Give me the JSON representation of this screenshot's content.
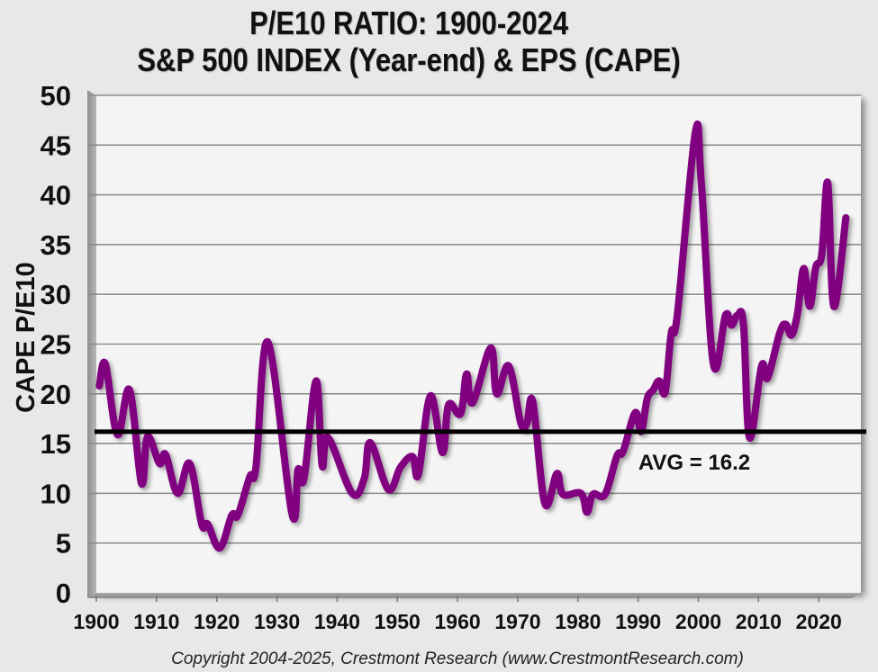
{
  "chart_data": {
    "type": "line",
    "title": "P/E10 RATIO: 1900-2024",
    "subtitle": "S&P 500 INDEX (Year-end) & EPS (CAPE)",
    "xlabel": "",
    "ylabel": "CAPE P/E10",
    "xlim": [
      1900,
      2027
    ],
    "ylim": [
      0,
      50
    ],
    "grid": true,
    "x_ticks": [
      1900,
      1910,
      1920,
      1930,
      1940,
      1950,
      1960,
      1970,
      1980,
      1990,
      2000,
      2010,
      2020
    ],
    "x_tick_labels": [
      "1900",
      "1910",
      "1920",
      "1930",
      "1940",
      "1950",
      "1960",
      "1970",
      "1980",
      "1990",
      "2000",
      "2010",
      "2020"
    ],
    "y_ticks": [
      0,
      5,
      10,
      15,
      20,
      25,
      30,
      35,
      40,
      45,
      50
    ],
    "y_tick_labels": [
      "0",
      "5",
      "10",
      "15",
      "20",
      "25",
      "30",
      "35",
      "40",
      "45",
      "50"
    ],
    "series": [
      {
        "name": "CAPE P/E10",
        "color": "#800080",
        "x": [
          1900,
          1901,
          1903,
          1905,
          1907,
          1908,
          1910,
          1911,
          1913,
          1915,
          1917,
          1918,
          1920,
          1922,
          1923,
          1925,
          1926,
          1928,
          1932,
          1933,
          1934,
          1936,
          1937,
          1938,
          1942,
          1944,
          1945,
          1948,
          1950,
          1952,
          1953,
          1955,
          1957,
          1958,
          1960,
          1961,
          1962,
          1965,
          1966,
          1968,
          1970,
          1971,
          1972,
          1974,
          1976,
          1977,
          1980,
          1981,
          1982,
          1984,
          1986,
          1987,
          1989,
          1990,
          1991,
          1992,
          1993,
          1994,
          1995,
          1996,
          1999,
          2000,
          2002,
          2004,
          2005,
          2006,
          2007,
          2008,
          2010,
          2011,
          2013,
          2014,
          2015,
          2016,
          2017,
          2018,
          2019,
          2020,
          2021,
          2022,
          2024
        ],
        "values": [
          20.8,
          23.0,
          15.9,
          20.4,
          11.0,
          15.7,
          13.0,
          13.9,
          10.0,
          13.0,
          6.9,
          6.9,
          4.5,
          7.8,
          7.8,
          11.7,
          12.6,
          25.2,
          7.9,
          12.4,
          11.5,
          21.3,
          12.8,
          15.6,
          10.0,
          11.5,
          15.1,
          10.4,
          12.6,
          13.7,
          11.9,
          19.8,
          14.1,
          18.9,
          18.0,
          22.0,
          19.1,
          24.6,
          20.0,
          22.8,
          17.1,
          17.0,
          19.2,
          9.0,
          12.0,
          9.9,
          10.0,
          8.1,
          9.9,
          9.9,
          13.8,
          14.2,
          18.1,
          16.2,
          19.5,
          20.4,
          21.3,
          20.2,
          26.1,
          27.9,
          46.3,
          41.2,
          23.0,
          27.9,
          26.9,
          27.9,
          27.0,
          15.6,
          22.8,
          21.6,
          26.1,
          27.0,
          25.9,
          28.2,
          32.6,
          28.8,
          32.7,
          34.0,
          41.2,
          28.8,
          37.7
        ]
      },
      {
        "name": "Average",
        "color": "#000000",
        "values": [
          16.2
        ]
      }
    ],
    "annotations": [
      {
        "text": "AVG = 16.2",
        "x": 2002,
        "y": 13.2
      }
    ]
  },
  "footer": {
    "copyright": "Copyright 2004-2025, Crestmont Research (www.CrestmontResearch.com)"
  }
}
